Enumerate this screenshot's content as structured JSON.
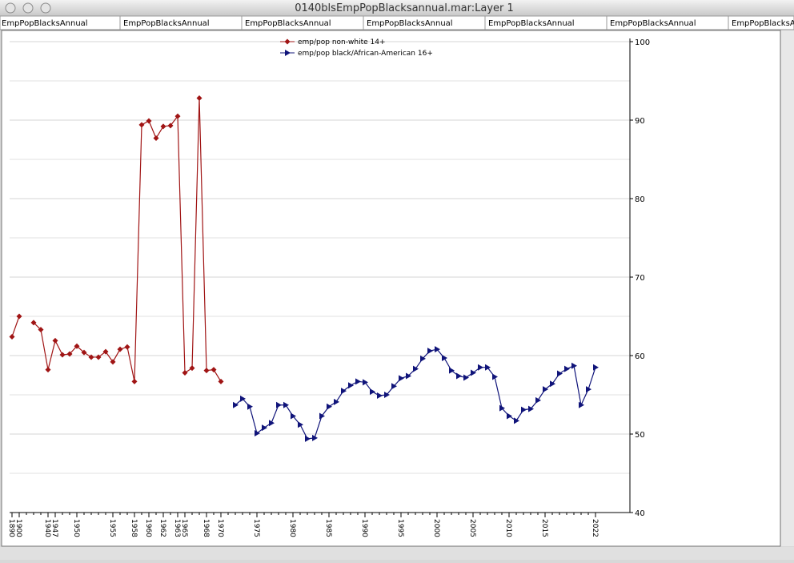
{
  "window": {
    "title": "0140blsEmpPopBlacksannual.mar:Layer 1",
    "tabs": [
      "EmpPopBlacksAnnual",
      "EmpPopBlacksAnnual",
      "EmpPopBlacksAnnual",
      "EmpPopBlacksAnnual",
      "EmpPopBlacksAnnual",
      "EmpPopBlacksAnnual",
      "EmpPopBlacksAnnual"
    ]
  },
  "chart_data": {
    "type": "line",
    "categories": [
      "1890",
      "1900",
      null,
      null,
      null,
      "1940",
      "1947",
      null,
      null,
      "1950",
      null,
      null,
      null,
      null,
      "1955",
      null,
      null,
      "1958",
      null,
      "1960",
      null,
      "1962",
      null,
      "1963",
      "1965",
      null,
      null,
      "1968",
      null,
      "1970",
      null,
      null,
      null,
      null,
      "1975",
      null,
      null,
      null,
      null,
      "1980",
      null,
      null,
      null,
      null,
      "1985",
      null,
      null,
      null,
      null,
      "1990",
      null,
      null,
      null,
      null,
      "1995",
      null,
      null,
      null,
      null,
      "2000",
      null,
      null,
      null,
      null,
      "2005",
      null,
      null,
      null,
      null,
      "2010",
      null,
      null,
      null,
      null,
      "2015",
      null,
      null,
      null,
      null,
      null,
      null,
      "2022"
    ],
    "series": [
      {
        "name": "emp/pop non-white 14+",
        "color": "#a01414",
        "marker": "diamond",
        "values": [
          62.4,
          65.0,
          null,
          64.2,
          63.3,
          58.2,
          61.9,
          60.1,
          60.2,
          61.2,
          60.4,
          59.8,
          59.8,
          60.5,
          59.2,
          60.8,
          61.1,
          56.7,
          89.4,
          89.9,
          87.7,
          89.2,
          89.3,
          90.5,
          57.8,
          58.4,
          92.8,
          58.1,
          58.2,
          56.7,
          null,
          null,
          null,
          null,
          null,
          null,
          null,
          null,
          null,
          null,
          null,
          null,
          null,
          null,
          null,
          null,
          null,
          null,
          null,
          null,
          null,
          null,
          null,
          null,
          null,
          null,
          null,
          null,
          null,
          null,
          null,
          null,
          null,
          null,
          null,
          null,
          null,
          null,
          null,
          null,
          null,
          null,
          null,
          null,
          null,
          null,
          null,
          null,
          null,
          null,
          null,
          null
        ]
      },
      {
        "name": "emp/pop black/African-American 16+",
        "color": "#10147a",
        "marker": "triangle",
        "values": [
          null,
          null,
          null,
          null,
          null,
          null,
          null,
          null,
          null,
          null,
          null,
          null,
          null,
          null,
          null,
          null,
          null,
          null,
          null,
          null,
          null,
          null,
          null,
          null,
          null,
          null,
          null,
          null,
          null,
          null,
          null,
          53.7,
          54.5,
          53.5,
          50.1,
          50.8,
          51.4,
          53.7,
          53.7,
          52.3,
          51.2,
          49.4,
          49.5,
          52.3,
          53.5,
          54.1,
          55.5,
          56.2,
          56.7,
          56.6,
          55.4,
          54.9,
          55.0,
          56.1,
          57.1,
          57.4,
          58.3,
          59.6,
          60.6,
          60.8,
          59.7,
          58.1,
          57.4,
          57.2,
          57.8,
          58.5,
          58.5,
          57.3,
          53.3,
          52.3,
          51.7,
          53.1,
          53.2,
          54.3,
          55.7,
          56.4,
          57.7,
          58.3,
          58.7,
          53.7,
          55.7,
          58.5
        ]
      }
    ],
    "ylim": [
      40,
      100
    ],
    "yticks": [
      40,
      50,
      60,
      70,
      80,
      90,
      100
    ],
    "minor_grid": [
      45,
      55,
      65,
      75,
      85,
      95
    ],
    "grid": true,
    "y_axis_side": "right",
    "legend": "top"
  }
}
